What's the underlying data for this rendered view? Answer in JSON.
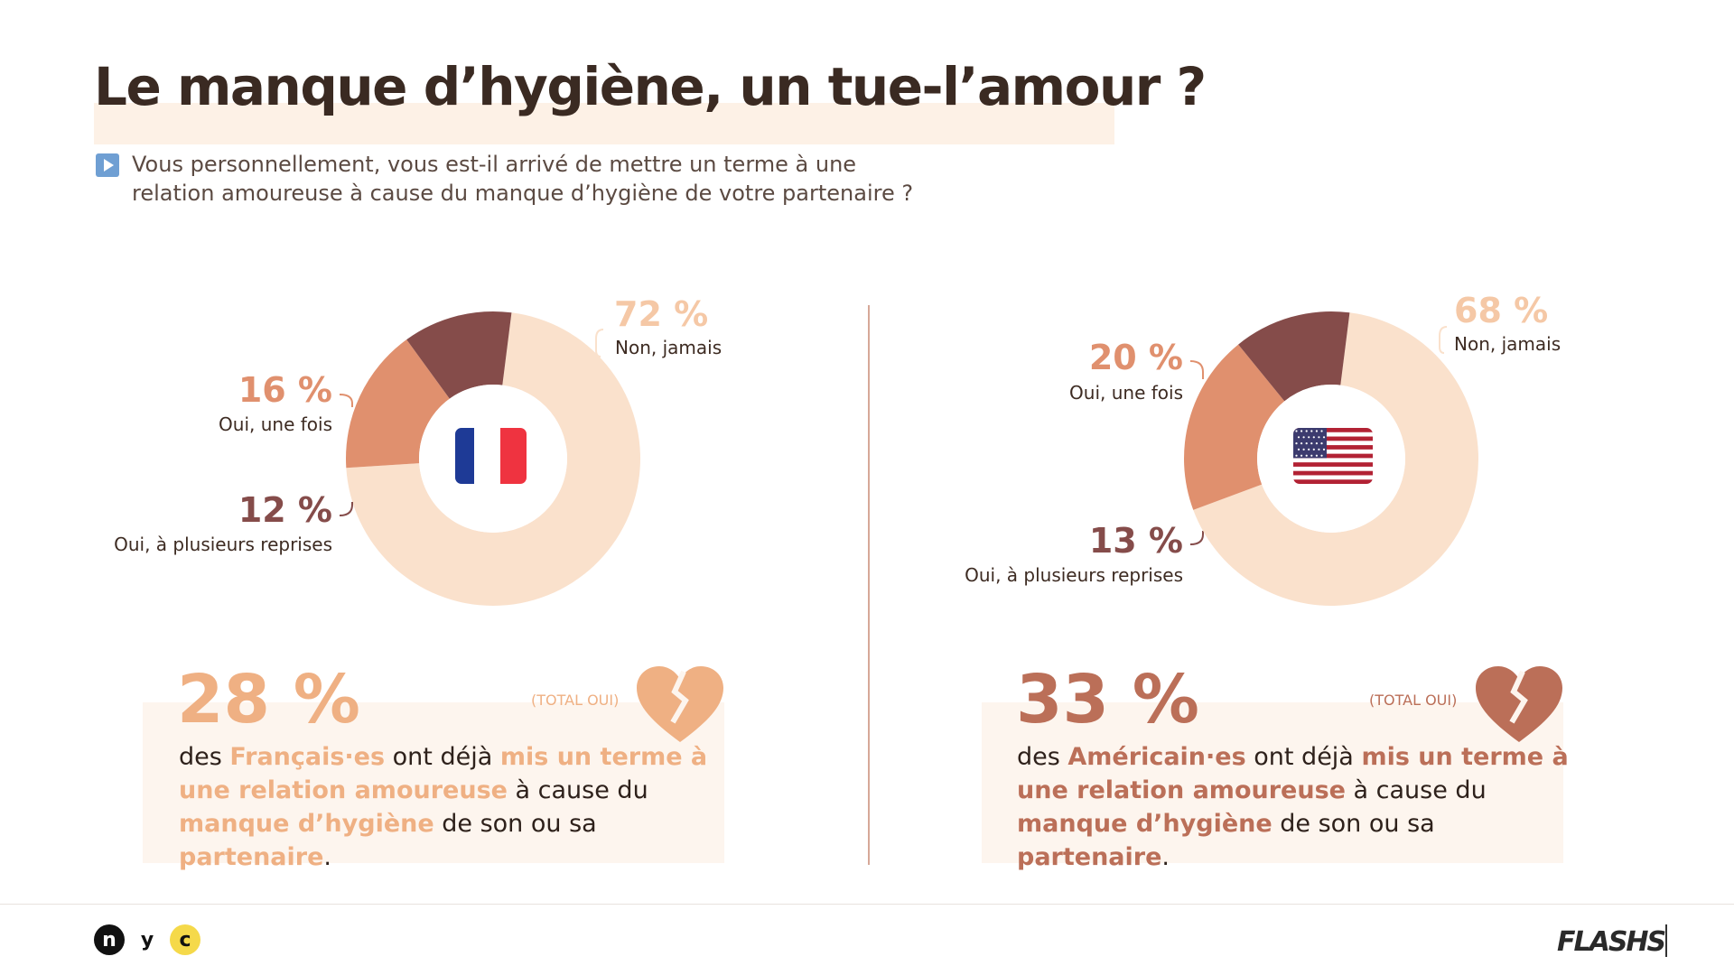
{
  "header": {
    "title": "Le manque d’hygiène, un tue-l’amour ?",
    "question_line1": "Vous personnellement, vous est-il arrivé de mettre un terme à une",
    "question_line2": "relation amoureuse à cause du manque d’hygiène de votre partenaire ?"
  },
  "colors": {
    "non_jamais": "#fae1cc",
    "oui_une_fois": "#e0906e",
    "oui_plusieurs": "#854c4a",
    "fr_accent": "#efb083",
    "us_accent": "#bb6f58",
    "question_icon": "#6f9fd3"
  },
  "chart_data": [
    {
      "type": "pie",
      "country_flag": "france-flag",
      "categories": [
        "Non, jamais",
        "Oui, une fois",
        "Oui, à plusieurs reprises"
      ],
      "values": [
        72,
        16,
        12
      ],
      "labels": {
        "non": "72 %",
        "une": "16 %",
        "plus": "12 %"
      }
    },
    {
      "type": "pie",
      "country_flag": "usa-flag",
      "categories": [
        "Non, jamais",
        "Oui, une fois",
        "Oui, à plusieurs reprises"
      ],
      "values": [
        68,
        20,
        13
      ],
      "labels": {
        "non": "68 %",
        "une": "20 %",
        "plus": "13 %"
      }
    }
  ],
  "fr": {
    "total_pct": "28 %",
    "total_label": "(TOTAL OUI)",
    "s_des": "des ",
    "s_who": "Français·es",
    "s_mid1": " ont déjà ",
    "s_hl1": "mis un terme à une relation amoureuse",
    "s_mid2": " à cause du ",
    "s_hl2": "manque d’hygiène",
    "s_mid3": " de son ou sa ",
    "s_hl3": "partenaire",
    "s_end": "."
  },
  "us": {
    "total_pct": "33 %",
    "total_label": "(TOTAL OUI)",
    "s_des": "des ",
    "s_who": "Américain·es",
    "s_mid1": " ont déjà ",
    "s_hl1": "mis un terme à une relation amoureuse",
    "s_mid2": " à cause du ",
    "s_hl2": "manque d’hygiène",
    "s_mid3": " de son ou sa ",
    "s_hl3": "partenaire",
    "s_end": "."
  },
  "footer": {
    "logo_n": "n",
    "logo_y": "y",
    "logo_c": "c",
    "brand": "FLASHS"
  }
}
